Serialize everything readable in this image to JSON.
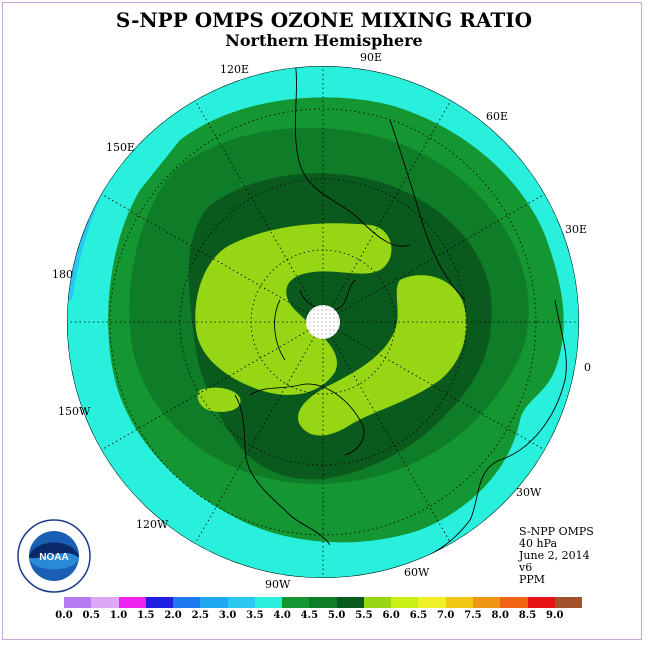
{
  "title": "S-NPP OMPS OZONE MIXING RATIO",
  "subtitle": "Northern Hemisphere",
  "logo": {
    "text": "NOAA",
    "ring_text": "NATIONAL OCEANIC AND ATMOSPHERIC ADMINISTRATION · U.S. DEPARTMENT OF COMMERCE"
  },
  "longitude_labels": {
    "lon_90e": "90E",
    "lon_60e": "60E",
    "lon_30e": "30E",
    "lon_0": "0",
    "lon_30w": "30W",
    "lon_60w": "60W",
    "lon_90w": "90W",
    "lon_120w": "120W",
    "lon_150w": "150W",
    "lon_180": "180",
    "lon_150e": "150E",
    "lon_120e": "120E"
  },
  "info": {
    "instrument": "S-NPP OMPS",
    "level": "40 hPa",
    "date": "June 2, 2014",
    "version": "v6",
    "units": "PPM"
  },
  "colorbar": {
    "colors": [
      "#b57bf0",
      "#dca8f8",
      "#ee22ee",
      "#1e1ee0",
      "#1e78f0",
      "#1ea8f0",
      "#28c8f0",
      "#28f0dc",
      "#149632",
      "#0f7d28",
      "#0a5a1e",
      "#96d614",
      "#c8f014",
      "#f0f028",
      "#f0c814",
      "#f09614",
      "#f06414",
      "#e61414",
      "#a0522d"
    ],
    "tick_labels": [
      "0.0",
      "0.5",
      "1.0",
      "1.5",
      "2.0",
      "2.5",
      "3.0",
      "3.5",
      "4.0",
      "4.5",
      "5.0",
      "5.5",
      "6.0",
      "6.5",
      "7.0",
      "7.5",
      "8.0",
      "8.5",
      "9.0"
    ]
  },
  "field_colors": {
    "low_3_0": "#28c8f0",
    "band_3_5": "#28f0dc",
    "band_4_0": "#149632",
    "band_4_5": "#0f7d28",
    "band_5_0": "#0a5a1e",
    "band_5_5": "#96d614",
    "pole_gap": "#ffffff"
  }
}
